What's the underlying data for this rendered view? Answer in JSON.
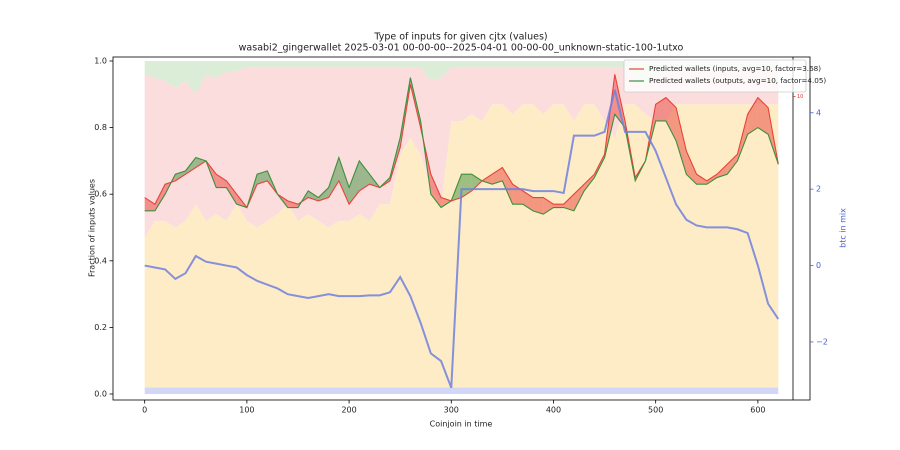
{
  "chart_data": {
    "type": "line",
    "title": "Type of inputs for given cjtx (values)",
    "subtitle": "wasabi2_gingerwallet 2025-03-01 00-00-00--2025-04-01 00-00-00_unknown-static-100-1utxo",
    "xlabel": "Coinjoin in time",
    "ylabel": "Fraction of inputs values",
    "y2label": "btc in mix",
    "legend": "upper right",
    "grid": false,
    "x": [
      0,
      10,
      20,
      30,
      40,
      50,
      60,
      70,
      80,
      90,
      100,
      110,
      120,
      130,
      140,
      150,
      160,
      170,
      180,
      190,
      200,
      210,
      220,
      230,
      240,
      250,
      260,
      270,
      280,
      290,
      300,
      310,
      320,
      330,
      340,
      350,
      360,
      370,
      380,
      390,
      400,
      410,
      420,
      430,
      440,
      450,
      460,
      470,
      480,
      490,
      500,
      510,
      520,
      530,
      540,
      550,
      560,
      570,
      580,
      590,
      600,
      610,
      620
    ],
    "xlim": [
      -31,
      651
    ],
    "xticks": [
      0,
      100,
      200,
      300,
      400,
      500,
      600
    ],
    "ylim": [
      -0.018,
      1.012
    ],
    "yticks": [
      {
        "value": 0,
        "label": "0.0"
      },
      0.2,
      0.4,
      0.6,
      0.8,
      {
        "value": 1,
        "label": "1.0"
      }
    ],
    "y2lim": [
      -3.52,
      5.46
    ],
    "y2ticks": [
      {
        "value": -2,
        "label": "−2"
      },
      0,
      2,
      4
    ],
    "y2color": "#4a5fd0",
    "y3lim": [
      0,
      11.3
    ],
    "y3ticks": [
      10
    ],
    "y3color": "#e03030",
    "series": [
      {
        "name": "Predicted wallets (inputs, avg=10, factor=3.68)",
        "color": "#e8423a",
        "values": [
          0.59,
          0.57,
          0.63,
          0.64,
          0.66,
          0.68,
          0.7,
          0.66,
          0.64,
          0.6,
          0.56,
          0.63,
          0.64,
          0.6,
          0.58,
          0.57,
          0.59,
          0.58,
          0.59,
          0.64,
          0.57,
          0.61,
          0.63,
          0.62,
          0.64,
          0.74,
          0.93,
          0.8,
          0.66,
          0.59,
          0.58,
          0.59,
          0.61,
          0.64,
          0.66,
          0.68,
          0.63,
          0.61,
          0.59,
          0.59,
          0.57,
          0.57,
          0.6,
          0.63,
          0.66,
          0.72,
          0.96,
          0.82,
          0.65,
          0.7,
          0.87,
          0.89,
          0.86,
          0.73,
          0.66,
          0.64,
          0.66,
          0.69,
          0.72,
          0.84,
          0.89,
          0.86,
          0.69
        ]
      },
      {
        "name": "Predicted wallets (outputs, avg=10, factor=4.05)",
        "color": "#3d8f3d",
        "values": [
          0.55,
          0.55,
          0.6,
          0.66,
          0.67,
          0.71,
          0.7,
          0.62,
          0.62,
          0.57,
          0.56,
          0.66,
          0.67,
          0.6,
          0.56,
          0.56,
          0.61,
          0.59,
          0.62,
          0.71,
          0.62,
          0.7,
          0.66,
          0.62,
          0.65,
          0.77,
          0.95,
          0.82,
          0.6,
          0.56,
          0.58,
          0.66,
          0.66,
          0.64,
          0.63,
          0.64,
          0.57,
          0.57,
          0.55,
          0.54,
          0.56,
          0.56,
          0.55,
          0.61,
          0.65,
          0.71,
          0.84,
          0.8,
          0.64,
          0.7,
          0.82,
          0.82,
          0.76,
          0.66,
          0.63,
          0.63,
          0.65,
          0.66,
          0.7,
          0.78,
          0.8,
          0.78,
          0.69
        ]
      },
      {
        "color": "#6f80dd",
        "axis": "y2",
        "values": [
          0,
          -0.05,
          -0.1,
          -0.35,
          -0.2,
          0.25,
          0.1,
          0.05,
          0,
          -0.05,
          -0.25,
          -0.4,
          -0.5,
          -0.6,
          -0.75,
          -0.8,
          -0.85,
          -0.8,
          -0.75,
          -0.8,
          -0.8,
          -0.8,
          -0.78,
          -0.78,
          -0.7,
          -0.3,
          -0.8,
          -1.5,
          -2.3,
          -2.5,
          -3.2,
          2.0,
          2.0,
          2.0,
          2.0,
          2.0,
          2.0,
          2.0,
          1.95,
          1.95,
          1.95,
          1.9,
          3.4,
          3.4,
          3.4,
          3.5,
          4.6,
          3.5,
          3.5,
          3.5,
          3.0,
          2.3,
          1.6,
          1.2,
          1.05,
          1.0,
          1.0,
          1.0,
          0.95,
          0.85,
          0.0,
          -1.0,
          -1.4
        ]
      }
    ],
    "background": [
      {
        "color": "#c4c9f4",
        "values": [
          0.02,
          0.02,
          0.02,
          0.02,
          0.02,
          0.02,
          0.02,
          0.02,
          0.02,
          0.02,
          0.02,
          0.02,
          0.02,
          0.02,
          0.02,
          0.02,
          0.02,
          0.02,
          0.02,
          0.02,
          0.02,
          0.02,
          0.02,
          0.02,
          0.02,
          0.02,
          0.02,
          0.02,
          0.02,
          0.02,
          0.02,
          0.02,
          0.02,
          0.02,
          0.02,
          0.02,
          0.02,
          0.02,
          0.02,
          0.02,
          0.02,
          0.02,
          0.02,
          0.02,
          0.02,
          0.02,
          0.02,
          0.02,
          0.02,
          0.02,
          0.02,
          0.02,
          0.02,
          0.02,
          0.02,
          0.02,
          0.02,
          0.02,
          0.02,
          0.02,
          0.02,
          0.02,
          0.02
        ]
      },
      {
        "color": "#fde6b4",
        "values": [
          0.45,
          0.5,
          0.5,
          0.48,
          0.5,
          0.55,
          0.5,
          0.52,
          0.5,
          0.55,
          0.5,
          0.48,
          0.5,
          0.52,
          0.55,
          0.5,
          0.52,
          0.5,
          0.48,
          0.5,
          0.5,
          0.52,
          0.5,
          0.55,
          0.55,
          0.7,
          0.75,
          0.7,
          0.6,
          0.55,
          0.8,
          0.8,
          0.82,
          0.8,
          0.85,
          0.85,
          0.82,
          0.85,
          0.85,
          0.82,
          0.85,
          0.85,
          0.8,
          0.85,
          0.85,
          0.8,
          0.75,
          0.85,
          0.85,
          0.82,
          0.8,
          0.8,
          0.85,
          0.85,
          0.85,
          0.85,
          0.85,
          0.85,
          0.85,
          0.85,
          0.85,
          0.85,
          0.85
        ]
      },
      {
        "color": "#f9d2d2",
        "values": [
          0.49,
          0.43,
          0.42,
          0.42,
          0.42,
          0.33,
          0.44,
          0.41,
          0.45,
          0.4,
          0.46,
          0.48,
          0.46,
          0.44,
          0.41,
          0.46,
          0.44,
          0.46,
          0.48,
          0.46,
          0.46,
          0.44,
          0.46,
          0.41,
          0.41,
          0.26,
          0.21,
          0.26,
          0.32,
          0.38,
          0.16,
          0.16,
          0.14,
          0.16,
          0.11,
          0.11,
          0.14,
          0.11,
          0.11,
          0.14,
          0.11,
          0.11,
          0.16,
          0.11,
          0.11,
          0.16,
          0.21,
          0.11,
          0.08,
          0.08,
          0.14,
          0.16,
          0.11,
          0.11,
          0.11,
          0.11,
          0.11,
          0.11,
          0.11,
          0.11,
          0.11,
          0.11,
          0.11
        ]
      },
      {
        "color": "#cfe7ca",
        "values": [
          0.04,
          0.05,
          0.06,
          0.08,
          0.06,
          0.1,
          0.04,
          0.05,
          0.03,
          0.03,
          0.02,
          0.02,
          0.02,
          0.02,
          0.02,
          0.02,
          0.02,
          0.02,
          0.02,
          0.02,
          0.02,
          0.02,
          0.02,
          0.02,
          0.02,
          0.02,
          0.02,
          0.02,
          0.06,
          0.05,
          0.02,
          0.02,
          0.02,
          0.02,
          0.02,
          0.02,
          0.02,
          0.02,
          0.02,
          0.02,
          0.02,
          0.02,
          0.02,
          0.02,
          0.02,
          0.02,
          0.02,
          0.02,
          0.05,
          0.08,
          0.04,
          0.02,
          0.02,
          0.02,
          0.02,
          0.02,
          0.02,
          0.02,
          0.02,
          0.02,
          0.02,
          0.02,
          0.02
        ]
      }
    ]
  }
}
